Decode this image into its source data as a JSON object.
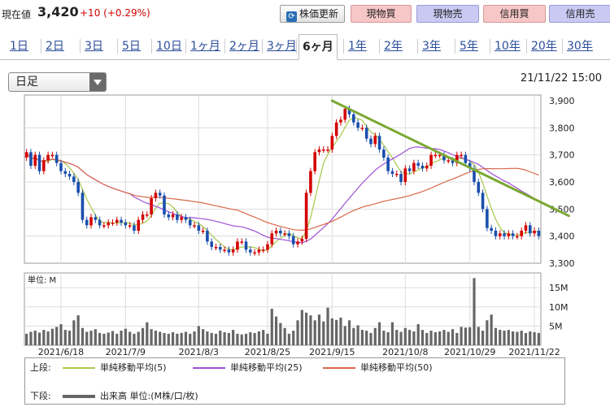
{
  "quote": {
    "label": "現在値",
    "price": "3,420",
    "change": "+10 (+0.29%)"
  },
  "buttons": {
    "refresh": "株価更新",
    "buy_cash": "現物買",
    "sell_cash": "現物売",
    "buy_margin": "信用買",
    "sell_margin": "信用売"
  },
  "periods": [
    {
      "label": "1日",
      "active": false
    },
    {
      "label": "2日",
      "active": false
    },
    {
      "label": "3日",
      "active": false
    },
    {
      "label": "5日",
      "active": false
    },
    {
      "label": "10日",
      "active": false
    },
    {
      "label": "1ヶ月",
      "active": false
    },
    {
      "label": "2ヶ月",
      "active": false
    },
    {
      "label": "3ヶ月",
      "active": false
    },
    {
      "label": "6ヶ月",
      "active": true
    },
    {
      "label": "1年",
      "active": false
    },
    {
      "label": "2年",
      "active": false
    },
    {
      "label": "3年",
      "active": false
    },
    {
      "label": "5年",
      "active": false
    },
    {
      "label": "10年",
      "active": false
    },
    {
      "label": "20年",
      "active": false
    },
    {
      "label": "30年",
      "active": false
    }
  ],
  "selector": {
    "value": "日足"
  },
  "datetime": "21/11/22 15:00",
  "colors": {
    "up": "#d40000",
    "down": "#1a4fae",
    "sma5": "#a7c84a",
    "sma25": "#a14fd6",
    "sma50": "#d9684a",
    "trend": "#7aa832",
    "volume": "#666666"
  },
  "chart_data": {
    "type": "candlestick",
    "price_ylim": [
      3300,
      3900
    ],
    "price_ticks": [
      "3,900",
      "3,800",
      "3,700",
      "3,600",
      "3,500",
      "3,400",
      "3,300"
    ],
    "volume_unit_label": "単位: M",
    "volume_ylim": [
      0,
      18
    ],
    "volume_ticks": [
      "15M",
      "10M",
      "5M"
    ],
    "x_ticks": [
      "2021/6/18",
      "2021/7/9",
      "2021/8/3",
      "2021/8/25",
      "2021/9/15",
      "2021/10/8",
      "2021/10/29",
      "2021/11/22"
    ],
    "x_tick_index": [
      8,
      23,
      40,
      56,
      71,
      88,
      103,
      118
    ],
    "sessions": 120,
    "close": [
      3710,
      3660,
      3700,
      3640,
      3680,
      3700,
      3700,
      3670,
      3640,
      3630,
      3620,
      3600,
      3560,
      3460,
      3440,
      3470,
      3460,
      3440,
      3440,
      3450,
      3450,
      3460,
      3450,
      3440,
      3440,
      3420,
      3460,
      3480,
      3480,
      3540,
      3560,
      3550,
      3480,
      3470,
      3480,
      3460,
      3470,
      3460,
      3440,
      3440,
      3420,
      3420,
      3380,
      3360,
      3360,
      3350,
      3350,
      3340,
      3350,
      3380,
      3380,
      3350,
      3340,
      3340,
      3350,
      3350,
      3370,
      3410,
      3420,
      3410,
      3410,
      3400,
      3370,
      3380,
      3390,
      3560,
      3640,
      3710,
      3720,
      3720,
      3720,
      3770,
      3820,
      3830,
      3870,
      3850,
      3820,
      3800,
      3800,
      3760,
      3740,
      3770,
      3720,
      3690,
      3640,
      3630,
      3630,
      3600,
      3650,
      3640,
      3670,
      3660,
      3650,
      3660,
      3700,
      3700,
      3700,
      3680,
      3680,
      3670,
      3700,
      3700,
      3670,
      3650,
      3600,
      3560,
      3500,
      3430,
      3420,
      3400,
      3410,
      3400,
      3410,
      3400,
      3400,
      3420,
      3440,
      3410,
      3420,
      3400
    ],
    "volume": [
      3.0,
      3.5,
      3.8,
      3.3,
      4.0,
      3.6,
      4.3,
      4.8,
      5.5,
      4.0,
      3.8,
      6.5,
      7.8,
      4.5,
      3.5,
      3.8,
      4.2,
      3.2,
      3.0,
      3.3,
      3.7,
      3.0,
      3.8,
      4.3,
      3.5,
      3.0,
      3.5,
      4.5,
      6.0,
      4.2,
      3.8,
      3.5,
      3.2,
      3.0,
      3.4,
      3.0,
      3.2,
      3.5,
      3.0,
      3.6,
      5.0,
      4.2,
      3.6,
      3.2,
      3.0,
      3.8,
      3.4,
      3.2,
      4.0,
      3.0,
      2.8,
      3.0,
      3.4,
      3.2,
      3.6,
      4.0,
      3.0,
      9.5,
      7.5,
      5.8,
      4.5,
      3.0,
      3.8,
      6.5,
      9.2,
      8.5,
      7.8,
      6.5,
      8.0,
      6.2,
      9.8,
      7.0,
      6.6,
      7.2,
      5.0,
      6.5,
      4.5,
      5.2,
      4.0,
      3.8,
      3.2,
      4.5,
      6.0,
      3.8,
      3.4,
      6.0,
      4.0,
      3.5,
      4.5,
      4.0,
      3.6,
      5.5,
      4.0,
      3.2,
      3.8,
      3.4,
      3.6,
      4.0,
      3.5,
      4.2,
      3.2,
      4.8,
      4.6,
      4.7,
      17.5,
      4.8,
      3.8,
      6.5,
      8.0,
      4.5,
      4.0,
      3.8,
      4.0,
      3.6,
      3.5,
      3.8,
      3.2,
      3.6,
      3.4,
      3.2
    ],
    "trendline": {
      "from": {
        "index": 71,
        "price": 3900
      },
      "to": {
        "index": 126,
        "price": 3475
      }
    },
    "legend": {
      "upper_label": "上段:",
      "lower_label": "下段:",
      "sma5": "単純移動平均(5)",
      "sma25": "単純移動平均(25)",
      "sma50": "単純移動平均(50)",
      "volume": "出来高 単位:(M株/口/枚)"
    }
  }
}
